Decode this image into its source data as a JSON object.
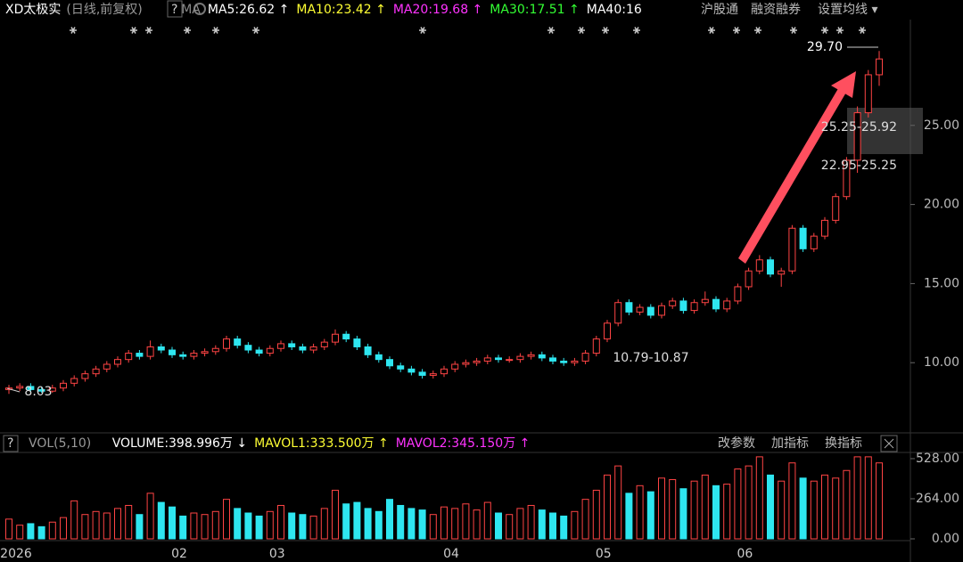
{
  "chart_data": [
    {
      "type": "candlestick",
      "title": "XD太极实",
      "subtitle": "(日线,前复权)",
      "help": "?",
      "indicators": [
        {
          "name": "MA",
          "color": "#8a8a8a"
        },
        {
          "name": "MA5:26.62 ↑",
          "color": "#ffffff"
        },
        {
          "name": "MA10:23.42 ↑",
          "color": "#ffff33"
        },
        {
          "name": "MA20:19.68 ↑",
          "color": "#ff33ff"
        },
        {
          "name": "MA30:17.51 ↑",
          "color": "#33ff33"
        },
        {
          "name": "MA40:16",
          "color": "#ffffff"
        }
      ],
      "toolbar": [
        "沪股通",
        "融资融券",
        "设置均线 ▾"
      ],
      "categories": [
        "2026",
        null,
        null,
        null,
        null,
        null,
        null,
        null,
        null,
        null,
        null,
        null,
        null,
        null,
        null,
        "02",
        null,
        null,
        null,
        null,
        null,
        null,
        null,
        null,
        "03",
        null,
        null,
        null,
        null,
        null,
        null,
        null,
        null,
        null,
        null,
        null,
        null,
        null,
        null,
        null,
        "04",
        null,
        null,
        null,
        null,
        null,
        null,
        null,
        null,
        null,
        null,
        null,
        null,
        null,
        "05",
        null,
        null,
        null,
        null,
        null,
        null,
        null,
        null,
        null,
        null,
        null,
        null,
        "06",
        null,
        null,
        null,
        null,
        null,
        null,
        null,
        null,
        null,
        null,
        null,
        null,
        null
      ],
      "open": [
        8.3,
        8.4,
        8.5,
        8.3,
        8.2,
        8.4,
        8.7,
        9.0,
        9.3,
        9.6,
        9.9,
        10.2,
        10.6,
        10.4,
        11.0,
        10.8,
        10.5,
        10.4,
        10.6,
        10.7,
        10.9,
        11.5,
        11.1,
        10.8,
        10.6,
        10.9,
        11.2,
        11.0,
        10.8,
        11.0,
        11.3,
        11.8,
        11.5,
        11.0,
        10.5,
        10.2,
        9.8,
        9.6,
        9.4,
        9.2,
        9.3,
        9.6,
        9.9,
        10.0,
        10.1,
        10.3,
        10.2,
        10.2,
        10.4,
        10.5,
        10.3,
        10.1,
        10.0,
        10.1,
        10.6,
        11.5,
        12.5,
        13.8,
        13.2,
        13.5,
        13.0,
        13.6,
        13.9,
        13.3,
        13.8,
        14.0,
        13.4,
        13.9,
        14.8,
        15.8,
        16.5,
        15.6,
        15.8,
        18.5,
        17.2,
        18.0,
        19.0,
        20.5,
        22.8,
        25.8,
        28.2
      ],
      "high": [
        8.6,
        8.7,
        8.7,
        8.5,
        8.6,
        8.9,
        9.2,
        9.5,
        9.8,
        10.1,
        10.4,
        10.8,
        10.8,
        11.4,
        11.2,
        11.0,
        10.7,
        10.8,
        10.9,
        11.1,
        11.7,
        11.7,
        11.3,
        11.0,
        11.1,
        11.4,
        11.4,
        11.2,
        11.2,
        11.5,
        12.1,
        12.0,
        11.7,
        11.2,
        10.7,
        10.4,
        10.0,
        9.8,
        9.6,
        9.5,
        9.8,
        10.1,
        10.2,
        10.3,
        10.5,
        10.5,
        10.4,
        10.6,
        10.7,
        10.7,
        10.5,
        10.3,
        10.3,
        10.8,
        11.7,
        12.7,
        14.0,
        14.0,
        13.7,
        13.7,
        13.8,
        14.1,
        14.1,
        14.0,
        14.5,
        14.2,
        14.1,
        15.0,
        16.0,
        16.8,
        16.7,
        16.0,
        18.7,
        18.7,
        18.2,
        19.2,
        20.7,
        23.0,
        26.2,
        28.5,
        29.7
      ],
      "low": [
        8.03,
        8.2,
        8.1,
        8.1,
        8.1,
        8.2,
        8.5,
        8.8,
        9.1,
        9.4,
        9.7,
        10.0,
        10.2,
        10.2,
        10.6,
        10.3,
        10.2,
        10.2,
        10.4,
        10.5,
        10.7,
        10.9,
        10.6,
        10.4,
        10.4,
        10.7,
        10.8,
        10.6,
        10.6,
        10.8,
        11.1,
        11.3,
        10.8,
        10.3,
        10.0,
        9.6,
        9.4,
        9.2,
        9.0,
        9.0,
        9.1,
        9.4,
        9.7,
        9.8,
        9.9,
        10.0,
        10.0,
        10.0,
        10.2,
        10.1,
        9.9,
        9.8,
        9.8,
        9.9,
        10.4,
        11.3,
        12.3,
        13.0,
        13.0,
        12.8,
        12.8,
        13.4,
        13.1,
        13.1,
        13.6,
        13.2,
        13.2,
        13.7,
        14.6,
        15.6,
        15.4,
        14.8,
        15.6,
        17.0,
        17.0,
        17.8,
        18.8,
        20.3,
        22.0,
        25.5,
        27.5
      ],
      "close": [
        8.4,
        8.5,
        8.3,
        8.2,
        8.4,
        8.7,
        9.0,
        9.3,
        9.6,
        9.9,
        10.2,
        10.6,
        10.4,
        11.0,
        10.8,
        10.5,
        10.4,
        10.6,
        10.7,
        10.9,
        11.5,
        11.1,
        10.8,
        10.6,
        10.9,
        11.2,
        11.0,
        10.8,
        11.0,
        11.3,
        11.8,
        11.5,
        11.0,
        10.5,
        10.2,
        9.8,
        9.6,
        9.4,
        9.2,
        9.3,
        9.6,
        9.9,
        10.0,
        10.1,
        10.3,
        10.2,
        10.2,
        10.4,
        10.5,
        10.3,
        10.1,
        10.0,
        10.1,
        10.6,
        11.5,
        12.5,
        13.8,
        13.2,
        13.5,
        13.0,
        13.6,
        13.9,
        13.3,
        13.8,
        14.0,
        13.4,
        13.9,
        14.8,
        15.8,
        16.5,
        15.6,
        15.8,
        18.5,
        17.2,
        18.0,
        19.0,
        20.5,
        22.8,
        25.8,
        28.2,
        29.2
      ],
      "up_color": "#ff4444",
      "down_color": "#2ee6f0",
      "ylim": [
        5.79,
        31.35
      ],
      "yticks": [
        {
          "value": 10,
          "label": "10.00"
        },
        {
          "value": 15,
          "label": "15.00"
        },
        {
          "value": 20,
          "label": "20.00"
        },
        {
          "value": 25,
          "label": "25.00"
        }
      ],
      "annotations": [
        {
          "text": "29.70"
        },
        {
          "text": "25.25-25.92"
        },
        {
          "text": "22.95-25.25"
        },
        {
          "text": "10.79-10.87"
        },
        {
          "text": "8.03"
        }
      ]
    },
    {
      "type": "bar",
      "title": "VOL(5,10)",
      "help": "?",
      "indicators": [
        {
          "name": "VOLUME:398.996万 ↓",
          "color": "#ffffff"
        },
        {
          "name": "MAVOL1:333.500万 ↑",
          "color": "#ffff33"
        },
        {
          "name": "MAVOL2:345.150万 ↑",
          "color": "#ff33ff"
        }
      ],
      "toolbar": [
        "改参数",
        "加指标",
        "换指标"
      ],
      "values": [
        130,
        90,
        100,
        80,
        110,
        140,
        250,
        160,
        180,
        170,
        200,
        220,
        160,
        300,
        240,
        210,
        150,
        170,
        160,
        180,
        260,
        200,
        170,
        150,
        180,
        220,
        170,
        160,
        150,
        200,
        320,
        230,
        240,
        200,
        180,
        260,
        220,
        200,
        190,
        160,
        210,
        200,
        230,
        190,
        240,
        170,
        160,
        200,
        220,
        190,
        170,
        150,
        180,
        260,
        320,
        420,
        480,
        300,
        350,
        310,
        400,
        390,
        330,
        380,
        420,
        350,
        360,
        460,
        480,
        540,
        420,
        380,
        500,
        400,
        380,
        420,
        400,
        450,
        540,
        540,
        500
      ],
      "ylim": [
        0,
        557
      ],
      "yticks": [
        {
          "value": 0,
          "label": "0.00"
        },
        {
          "value": 264,
          "label": "264.00"
        },
        {
          "value": 528,
          "label": "528.00"
        }
      ]
    }
  ]
}
